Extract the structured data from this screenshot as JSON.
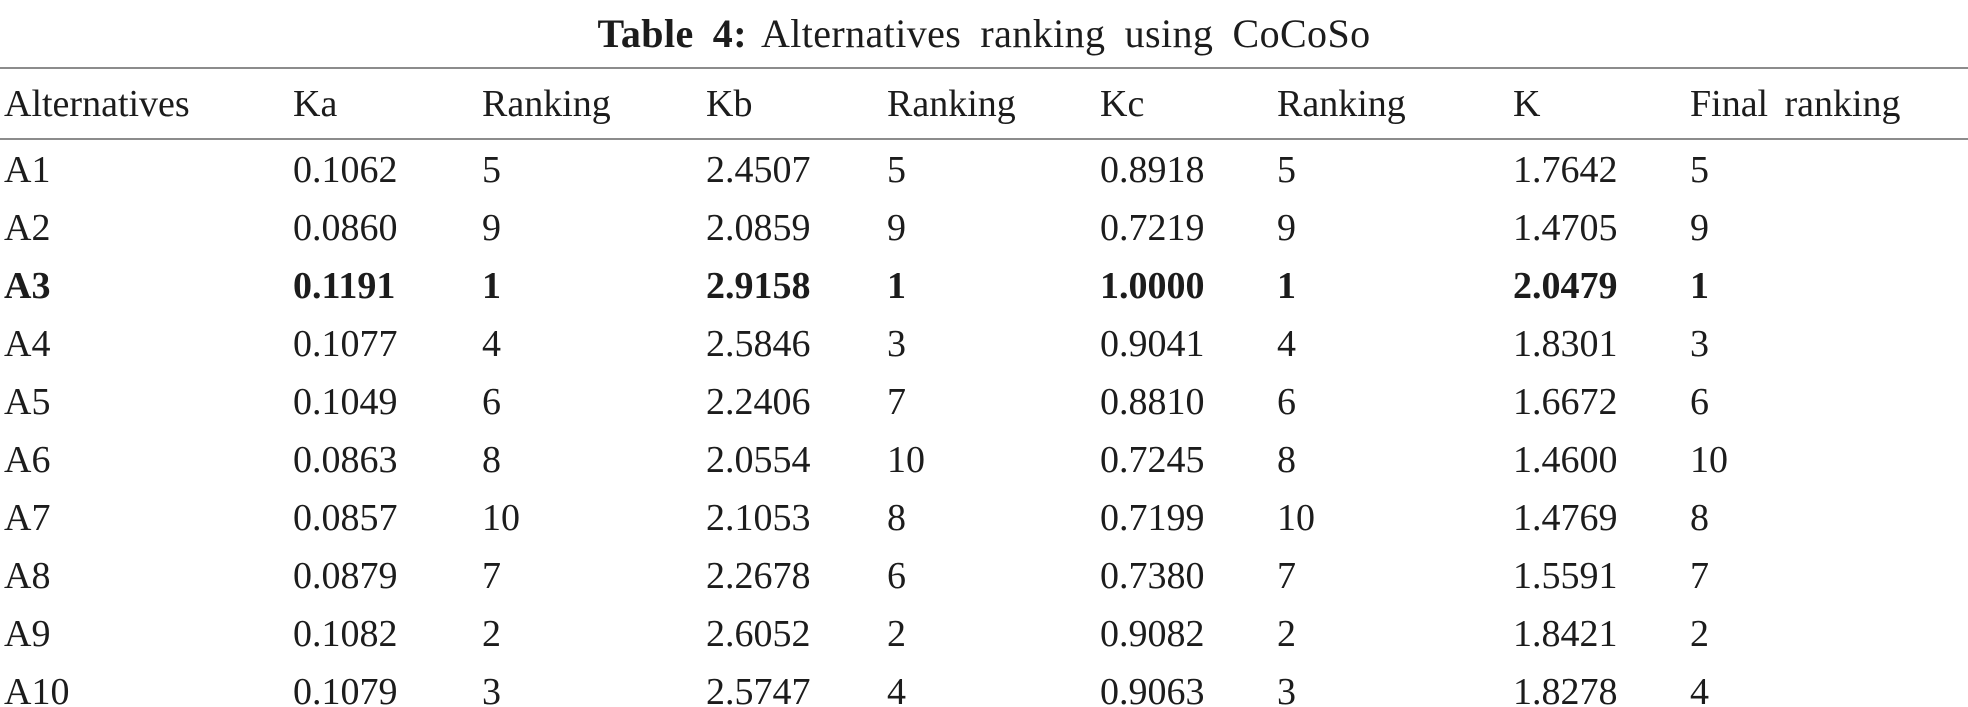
{
  "title": {
    "label": "Table 4:",
    "text": "Alternatives ranking using CoCoSo"
  },
  "table": {
    "headers": [
      "Alternatives",
      "Ka",
      "Ranking",
      "Kb",
      "Ranking",
      "Kc",
      "Ranking",
      "K",
      "Final ranking"
    ],
    "rows": [
      {
        "cells": [
          "A1",
          "0.1062",
          "5",
          "2.4507",
          "5",
          "0.8918",
          "5",
          "1.7642",
          "5"
        ],
        "bold": false
      },
      {
        "cells": [
          "A2",
          "0.0860",
          "9",
          "2.0859",
          "9",
          "0.7219",
          "9",
          "1.4705",
          "9"
        ],
        "bold": false
      },
      {
        "cells": [
          "A3",
          "0.1191",
          "1",
          "2.9158",
          "1",
          "1.0000",
          "1",
          "2.0479",
          "1"
        ],
        "bold": true
      },
      {
        "cells": [
          "A4",
          "0.1077",
          "4",
          "2.5846",
          "3",
          "0.9041",
          "4",
          "1.8301",
          "3"
        ],
        "bold": false
      },
      {
        "cells": [
          "A5",
          "0.1049",
          "6",
          "2.2406",
          "7",
          "0.8810",
          "6",
          "1.6672",
          "6"
        ],
        "bold": false
      },
      {
        "cells": [
          "A6",
          "0.0863",
          "8",
          "2.0554",
          "10",
          "0.7245",
          "8",
          "1.4600",
          "10"
        ],
        "bold": false
      },
      {
        "cells": [
          "A7",
          "0.0857",
          "10",
          "2.1053",
          "8",
          "0.7199",
          "10",
          "1.4769",
          "8"
        ],
        "bold": false
      },
      {
        "cells": [
          "A8",
          "0.0879",
          "7",
          "2.2678",
          "6",
          "0.7380",
          "7",
          "1.5591",
          "7"
        ],
        "bold": false
      },
      {
        "cells": [
          "A9",
          "0.1082",
          "2",
          "2.6052",
          "2",
          "0.9082",
          "2",
          "1.8421",
          "2"
        ],
        "bold": false
      },
      {
        "cells": [
          "A10",
          "0.1079",
          "3",
          "2.5747",
          "4",
          "0.9063",
          "3",
          "1.8278",
          "4"
        ],
        "bold": false
      }
    ]
  },
  "colors": {
    "text": "#1c1c1c",
    "rule": "#8c8c8c",
    "background": "#ffffff"
  }
}
